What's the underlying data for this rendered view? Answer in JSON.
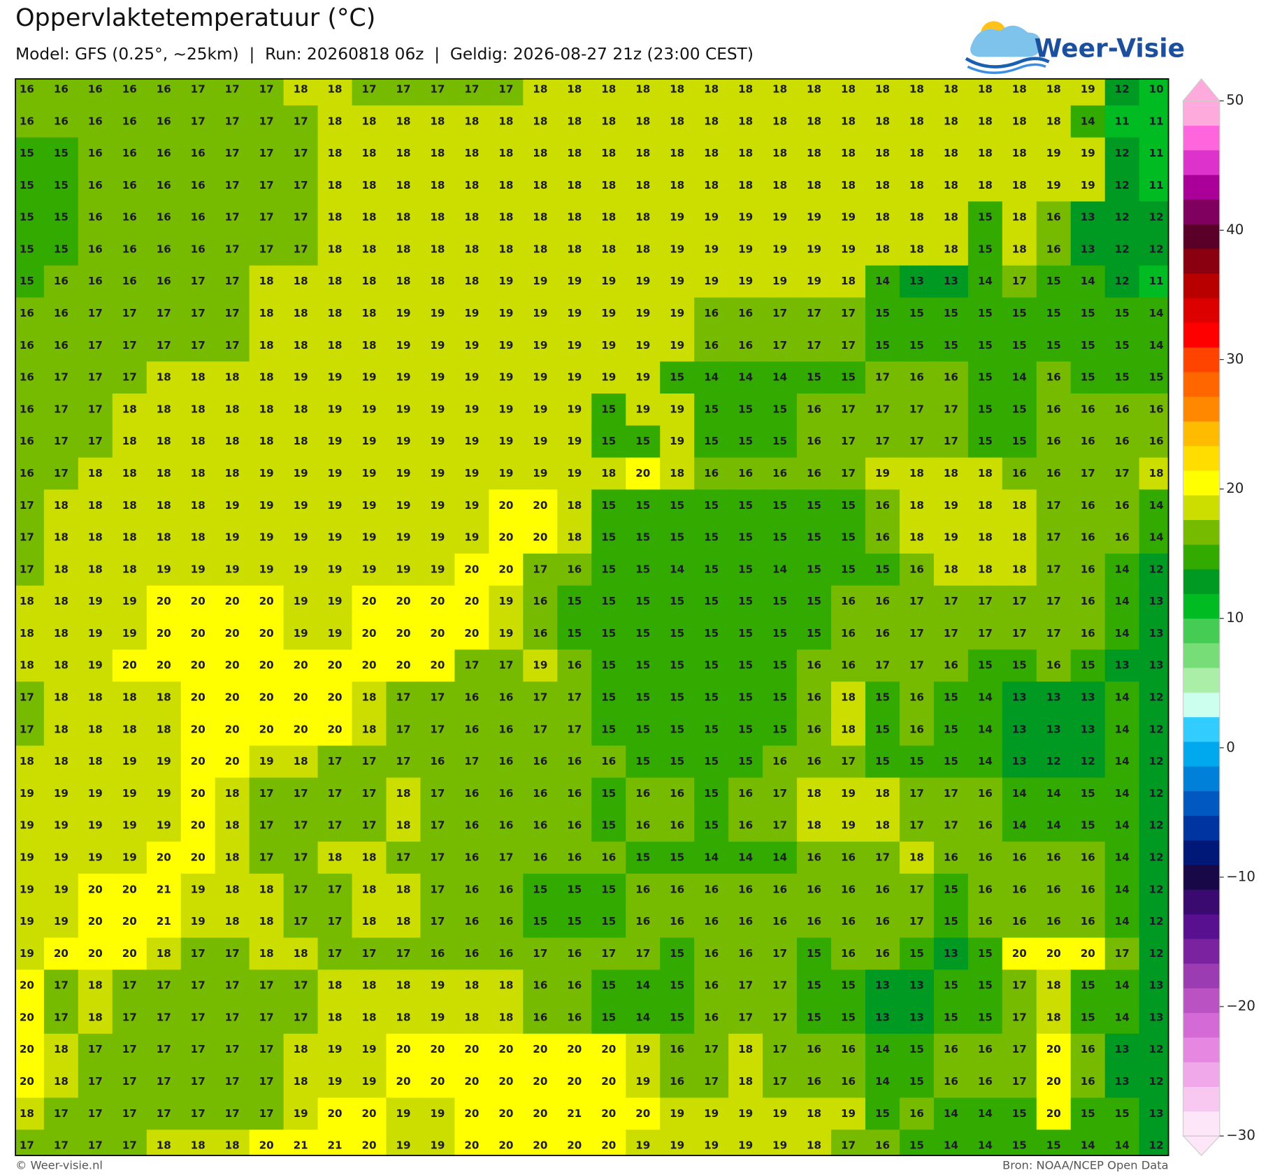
{
  "header": {
    "title": "Oppervlaktetemperatuur (°C)",
    "subtitle": "Model: GFS (0.25°, ~25km)  |  Run: 20260818 06z  |  Geldig: 2026-08-27 21z (23:00 CEST)"
  },
  "logo": "Weer-Visie",
  "grid": {
    "rows": [
      [
        16,
        16,
        16,
        16,
        16,
        17,
        17,
        17,
        18,
        18,
        17,
        17,
        17,
        17,
        17,
        18,
        18,
        18,
        18,
        18,
        18,
        18,
        18,
        18,
        18,
        18,
        18,
        18,
        18,
        18,
        18,
        19,
        12,
        10
      ],
      [
        16,
        16,
        16,
        16,
        16,
        17,
        17,
        17,
        17,
        18,
        18,
        18,
        18,
        18,
        18,
        18,
        18,
        18,
        18,
        18,
        18,
        18,
        18,
        18,
        18,
        18,
        18,
        18,
        18,
        18,
        18,
        14,
        11,
        11
      ],
      [
        15,
        15,
        16,
        16,
        16,
        16,
        17,
        17,
        17,
        18,
        18,
        18,
        18,
        18,
        18,
        18,
        18,
        18,
        18,
        18,
        18,
        18,
        18,
        18,
        18,
        18,
        18,
        18,
        18,
        18,
        19,
        19,
        12,
        11
      ],
      [
        15,
        15,
        16,
        16,
        16,
        16,
        17,
        17,
        17,
        18,
        18,
        18,
        18,
        18,
        18,
        18,
        18,
        18,
        18,
        18,
        18,
        18,
        18,
        18,
        18,
        18,
        18,
        18,
        18,
        18,
        19,
        19,
        12,
        11
      ],
      [
        15,
        15,
        16,
        16,
        16,
        16,
        17,
        17,
        17,
        18,
        18,
        18,
        18,
        18,
        18,
        18,
        18,
        18,
        18,
        19,
        19,
        19,
        19,
        19,
        19,
        18,
        18,
        18,
        15,
        18,
        16,
        13,
        12,
        12
      ],
      [
        15,
        15,
        16,
        16,
        16,
        16,
        17,
        17,
        17,
        18,
        18,
        18,
        18,
        18,
        18,
        18,
        18,
        18,
        18,
        19,
        19,
        19,
        19,
        19,
        19,
        18,
        18,
        18,
        15,
        18,
        16,
        13,
        12,
        12
      ],
      [
        15,
        16,
        16,
        16,
        16,
        17,
        17,
        18,
        18,
        18,
        18,
        18,
        18,
        18,
        19,
        19,
        19,
        19,
        19,
        19,
        19,
        19,
        19,
        19,
        18,
        14,
        13,
        13,
        14,
        17,
        15,
        14,
        12,
        11
      ],
      [
        16,
        16,
        17,
        17,
        17,
        17,
        17,
        18,
        18,
        18,
        18,
        19,
        19,
        19,
        19,
        19,
        19,
        19,
        19,
        19,
        16,
        16,
        17,
        17,
        17,
        15,
        15,
        15,
        15,
        15,
        15,
        15,
        15,
        14
      ],
      [
        16,
        16,
        17,
        17,
        17,
        17,
        17,
        18,
        18,
        18,
        18,
        19,
        19,
        19,
        19,
        19,
        19,
        19,
        19,
        19,
        16,
        16,
        17,
        17,
        17,
        15,
        15,
        15,
        15,
        15,
        15,
        15,
        15,
        14
      ],
      [
        16,
        17,
        17,
        17,
        18,
        18,
        18,
        18,
        19,
        19,
        19,
        19,
        19,
        19,
        19,
        19,
        19,
        19,
        19,
        15,
        14,
        14,
        14,
        15,
        15,
        17,
        16,
        16,
        15,
        14,
        16,
        15,
        15,
        15
      ],
      [
        16,
        17,
        17,
        18,
        18,
        18,
        18,
        18,
        18,
        19,
        19,
        19,
        19,
        19,
        19,
        19,
        19,
        15,
        19,
        19,
        15,
        15,
        15,
        16,
        17,
        17,
        17,
        17,
        15,
        15,
        16,
        16,
        16,
        16
      ],
      [
        16,
        17,
        17,
        18,
        18,
        18,
        18,
        18,
        18,
        19,
        19,
        19,
        19,
        19,
        19,
        19,
        19,
        15,
        15,
        19,
        15,
        15,
        15,
        16,
        17,
        17,
        17,
        17,
        15,
        15,
        16,
        16,
        16,
        16
      ],
      [
        16,
        17,
        18,
        18,
        18,
        18,
        18,
        19,
        19,
        19,
        19,
        19,
        19,
        19,
        19,
        19,
        19,
        18,
        20,
        18,
        16,
        16,
        16,
        16,
        17,
        19,
        18,
        18,
        18,
        16,
        16,
        17,
        17,
        18
      ],
      [
        17,
        18,
        18,
        18,
        18,
        18,
        19,
        19,
        19,
        19,
        19,
        19,
        19,
        19,
        20,
        20,
        18,
        15,
        15,
        15,
        15,
        15,
        15,
        15,
        15,
        16,
        18,
        19,
        18,
        18,
        17,
        16,
        16,
        14
      ],
      [
        17,
        18,
        18,
        18,
        18,
        18,
        19,
        19,
        19,
        19,
        19,
        19,
        19,
        19,
        20,
        20,
        18,
        15,
        15,
        15,
        15,
        15,
        15,
        15,
        15,
        16,
        18,
        19,
        18,
        18,
        17,
        16,
        16,
        14
      ],
      [
        17,
        18,
        18,
        18,
        19,
        19,
        19,
        19,
        19,
        19,
        19,
        19,
        19,
        20,
        20,
        17,
        16,
        15,
        15,
        14,
        15,
        15,
        14,
        15,
        15,
        15,
        16,
        18,
        18,
        18,
        17,
        16,
        14,
        12
      ],
      [
        18,
        18,
        19,
        19,
        20,
        20,
        20,
        20,
        19,
        19,
        20,
        20,
        20,
        20,
        19,
        16,
        15,
        15,
        15,
        15,
        15,
        15,
        15,
        15,
        16,
        16,
        17,
        17,
        17,
        17,
        17,
        16,
        14,
        13
      ],
      [
        18,
        18,
        19,
        19,
        20,
        20,
        20,
        20,
        19,
        19,
        20,
        20,
        20,
        20,
        19,
        16,
        15,
        15,
        15,
        15,
        15,
        15,
        15,
        15,
        16,
        16,
        17,
        17,
        17,
        17,
        17,
        16,
        14,
        13
      ],
      [
        18,
        18,
        19,
        20,
        20,
        20,
        20,
        20,
        20,
        20,
        20,
        20,
        20,
        17,
        17,
        19,
        16,
        15,
        15,
        15,
        15,
        15,
        15,
        16,
        16,
        17,
        17,
        16,
        15,
        15,
        16,
        15,
        13,
        13
      ],
      [
        17,
        18,
        18,
        18,
        18,
        20,
        20,
        20,
        20,
        20,
        18,
        17,
        17,
        16,
        16,
        17,
        17,
        15,
        15,
        15,
        15,
        15,
        15,
        16,
        18,
        15,
        16,
        15,
        14,
        13,
        13,
        13,
        14,
        12
      ],
      [
        17,
        18,
        18,
        18,
        18,
        20,
        20,
        20,
        20,
        20,
        18,
        17,
        17,
        16,
        16,
        17,
        17,
        15,
        15,
        15,
        15,
        15,
        15,
        16,
        18,
        15,
        16,
        15,
        14,
        13,
        13,
        13,
        14,
        12
      ],
      [
        18,
        18,
        18,
        19,
        19,
        20,
        20,
        19,
        18,
        17,
        17,
        17,
        16,
        17,
        16,
        16,
        16,
        16,
        15,
        15,
        15,
        15,
        16,
        16,
        17,
        15,
        15,
        15,
        14,
        13,
        12,
        12,
        14,
        12
      ],
      [
        19,
        19,
        19,
        19,
        19,
        20,
        18,
        17,
        17,
        17,
        17,
        18,
        17,
        16,
        16,
        16,
        16,
        15,
        16,
        16,
        15,
        16,
        17,
        18,
        19,
        18,
        17,
        17,
        16,
        14,
        14,
        15,
        14,
        12
      ],
      [
        19,
        19,
        19,
        19,
        19,
        20,
        18,
        17,
        17,
        17,
        17,
        18,
        17,
        16,
        16,
        16,
        16,
        15,
        16,
        16,
        15,
        16,
        17,
        18,
        19,
        18,
        17,
        17,
        16,
        14,
        14,
        15,
        14,
        12
      ],
      [
        19,
        19,
        19,
        19,
        20,
        20,
        18,
        17,
        17,
        18,
        18,
        17,
        17,
        16,
        17,
        16,
        16,
        16,
        15,
        15,
        14,
        14,
        14,
        16,
        16,
        17,
        18,
        16,
        16,
        16,
        16,
        16,
        14,
        12
      ],
      [
        19,
        19,
        20,
        20,
        21,
        19,
        18,
        18,
        17,
        17,
        18,
        18,
        17,
        16,
        16,
        15,
        15,
        15,
        16,
        16,
        16,
        16,
        16,
        16,
        16,
        16,
        17,
        15,
        16,
        16,
        16,
        16,
        14,
        12
      ],
      [
        19,
        19,
        20,
        20,
        21,
        19,
        18,
        18,
        17,
        17,
        18,
        18,
        17,
        16,
        16,
        15,
        15,
        15,
        16,
        16,
        16,
        16,
        16,
        16,
        16,
        16,
        17,
        15,
        16,
        16,
        16,
        16,
        14,
        12
      ],
      [
        19,
        20,
        20,
        20,
        18,
        17,
        17,
        18,
        18,
        17,
        17,
        17,
        16,
        16,
        16,
        17,
        16,
        17,
        17,
        15,
        16,
        16,
        17,
        15,
        16,
        16,
        15,
        13,
        15,
        20,
        20,
        20,
        17,
        12
      ],
      [
        20,
        17,
        18,
        17,
        17,
        17,
        17,
        17,
        17,
        18,
        18,
        18,
        19,
        18,
        18,
        16,
        16,
        15,
        14,
        15,
        16,
        17,
        17,
        15,
        15,
        13,
        13,
        15,
        15,
        17,
        18,
        15,
        14,
        13
      ],
      [
        20,
        17,
        18,
        17,
        17,
        17,
        17,
        17,
        17,
        18,
        18,
        18,
        19,
        18,
        18,
        16,
        16,
        15,
        14,
        15,
        16,
        17,
        17,
        15,
        15,
        13,
        13,
        15,
        15,
        17,
        18,
        15,
        14,
        13
      ],
      [
        20,
        18,
        17,
        17,
        17,
        17,
        17,
        17,
        18,
        19,
        19,
        20,
        20,
        20,
        20,
        20,
        20,
        20,
        19,
        16,
        17,
        18,
        17,
        16,
        16,
        14,
        15,
        16,
        16,
        17,
        20,
        16,
        13,
        12
      ],
      [
        20,
        18,
        17,
        17,
        17,
        17,
        17,
        17,
        18,
        19,
        19,
        20,
        20,
        20,
        20,
        20,
        20,
        20,
        19,
        16,
        17,
        18,
        17,
        16,
        16,
        14,
        15,
        16,
        16,
        17,
        20,
        16,
        13,
        12
      ],
      [
        18,
        17,
        17,
        17,
        17,
        17,
        17,
        17,
        19,
        20,
        20,
        19,
        19,
        20,
        20,
        20,
        21,
        20,
        20,
        19,
        19,
        19,
        19,
        18,
        19,
        15,
        16,
        14,
        14,
        15,
        20,
        15,
        15,
        13
      ],
      [
        17,
        17,
        17,
        17,
        18,
        18,
        18,
        20,
        21,
        21,
        20,
        19,
        19,
        20,
        20,
        20,
        20,
        20,
        19,
        19,
        19,
        19,
        19,
        18,
        17,
        16,
        15,
        14,
        14,
        15,
        15,
        14,
        14,
        12
      ]
    ]
  },
  "colorbar": {
    "lim": [
      -30,
      50
    ],
    "ticks": [
      50,
      40,
      30,
      20,
      10,
      0,
      {
        "value": -10,
        "label": "−10"
      },
      {
        "value": -20,
        "label": "−20"
      },
      {
        "value": -30,
        "label": "−30"
      }
    ],
    "colors": [
      "#fde6f8",
      "#f8c8f0",
      "#f0a8ea",
      "#e688e2",
      "#d46ad6",
      "#bb52c4",
      "#9c3cb2",
      "#7a22a0",
      "#581090",
      "#3a0a70",
      "#180848",
      "#001878",
      "#0034a0",
      "#0058c0",
      "#0080d8",
      "#00a8ee",
      "#33ccff",
      "#ccffee",
      "#aaeea8",
      "#77dd77",
      "#44cc55",
      "#00bb22",
      "#009922",
      "#33aa00",
      "#77bb00",
      "#ccdd00",
      "#ffff00",
      "#ffdd00",
      "#ffbb00",
      "#ff8800",
      "#ff6600",
      "#ff4400",
      "#ff0000",
      "#dd0000",
      "#b80000",
      "#8a0010",
      "#5a0028",
      "#800060",
      "#aa0099",
      "#dd33cc",
      "#ff66dd",
      "#ffaadd"
    ]
  },
  "footer": {
    "left": "© Weer-visie.nl",
    "right": "Bron: NOAA/NCEP Open Data"
  }
}
